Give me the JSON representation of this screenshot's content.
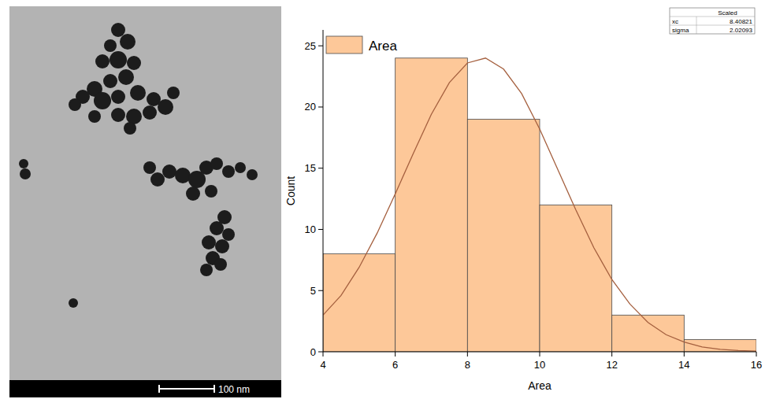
{
  "micrograph": {
    "scale_bar": "100 nm"
  },
  "chart_data": {
    "type": "histogram",
    "x_label": "Area",
    "y_label": "Count",
    "bins": [
      4,
      6,
      8,
      10,
      12,
      14,
      16
    ],
    "series": [
      {
        "name": "Area",
        "type": "bar",
        "color": "#fdc899",
        "values": [
          8,
          24,
          19,
          12,
          3,
          1
        ]
      },
      {
        "type": "line",
        "color": "#a5603f",
        "x": [
          4,
          4.5,
          5,
          5.5,
          6,
          6.5,
          7,
          7.5,
          8,
          8.5,
          9,
          9.5,
          10,
          10.5,
          11,
          11.5,
          12,
          12.5,
          13,
          13.5,
          14,
          14.5,
          15,
          15.5,
          16
        ],
        "values": [
          3.0,
          4.6,
          6.9,
          9.7,
          12.9,
          16.2,
          19.4,
          22.0,
          23.6,
          24.0,
          23.1,
          21.1,
          18.2,
          14.9,
          11.6,
          8.5,
          5.9,
          3.9,
          2.4,
          1.4,
          0.8,
          0.4,
          0.2,
          0.1,
          0.05
        ]
      }
    ],
    "xlim": [
      4,
      16
    ],
    "xticks": [
      4,
      6,
      8,
      10,
      12,
      14,
      16
    ],
    "ylim": [
      0,
      26.3
    ],
    "yticks": [
      0,
      5,
      10,
      15,
      20,
      25
    ],
    "grid": false,
    "legend": "top-left",
    "annotations": {
      "title": "Scaled",
      "rows": [
        [
          "xc",
          "8.40821"
        ],
        [
          "sigma",
          "2.02093"
        ]
      ]
    }
  }
}
